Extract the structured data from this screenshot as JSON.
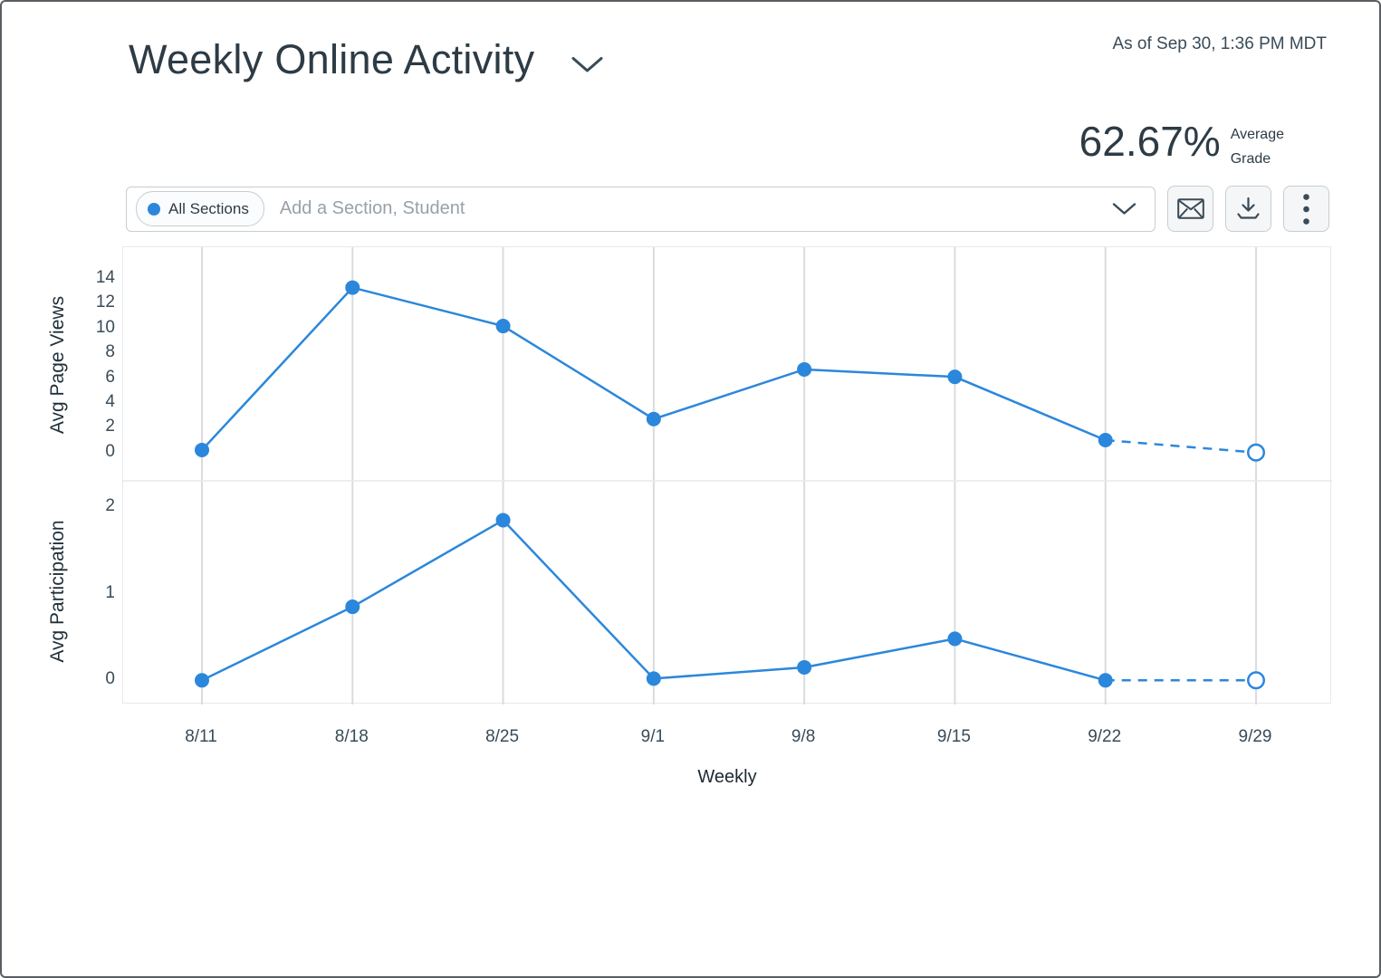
{
  "page": {
    "title": "Weekly Online Activity",
    "as_of": "As of Sep 30, 1:36 PM MDT"
  },
  "summary": {
    "average_grade": "62.67%",
    "label_top": "Average",
    "label_bottom": "Grade"
  },
  "filter_bar": {
    "all_sections_label": "All Sections",
    "search_placeholder": "Add a Section, Student"
  },
  "icons": {
    "title_chevron": "chevron-down",
    "field_chevron": "chevron-down",
    "message_button": "envelope",
    "download_button": "download-arrow-tray",
    "more_button": "kebab-vertical-dots"
  },
  "colors": {
    "accent_blue": "#2b87db",
    "grid_line": "#d9dcdf",
    "divider": "#e7e9eb",
    "text_dark": "#2d3b45",
    "text_slate": "#394b58",
    "placeholder_gray": "#97a1a9"
  },
  "x_axis": {
    "label": "Weekly",
    "categories": [
      "8/11",
      "8/18",
      "8/25",
      "9/1",
      "9/8",
      "9/15",
      "9/22",
      "9/29"
    ]
  },
  "chart_data": [
    {
      "type": "line",
      "title": "Weekly Online Activity - Avg Page Views",
      "ylabel": "Avg Page Views",
      "xlabel": "Weekly",
      "categories": [
        "8/11",
        "8/18",
        "8/25",
        "9/1",
        "9/8",
        "9/15",
        "9/22",
        "9/29"
      ],
      "values": [
        0.2,
        13.3,
        10.2,
        2.7,
        6.7,
        6.1,
        1.0,
        0
      ],
      "ylim": [
        0,
        16
      ],
      "yticks": [
        14,
        12,
        10,
        8,
        6,
        4,
        2,
        0
      ],
      "line_color": "#2b87db",
      "grid": "vertical-weekly-gridlines",
      "legend": "none",
      "projected_index": 7,
      "projection_style": "dashed connector to hollow marker for current incomplete week"
    },
    {
      "type": "line",
      "title": "Weekly Online Activity - Avg Participation",
      "ylabel": "Avg Participation",
      "xlabel": "Weekly",
      "categories": [
        "8/11",
        "8/18",
        "8/25",
        "9/1",
        "9/8",
        "9/15",
        "9/22",
        "9/29"
      ],
      "values": [
        0,
        0.85,
        1.85,
        0.02,
        0.15,
        0.48,
        0,
        0
      ],
      "ylim": [
        0,
        2.3
      ],
      "yticks": [
        2,
        1,
        0
      ],
      "line_color": "#2b87db",
      "grid": "vertical-weekly-gridlines",
      "legend": "none",
      "projected_index": 7,
      "projection_style": "dashed connector to hollow marker for current incomplete week"
    }
  ]
}
